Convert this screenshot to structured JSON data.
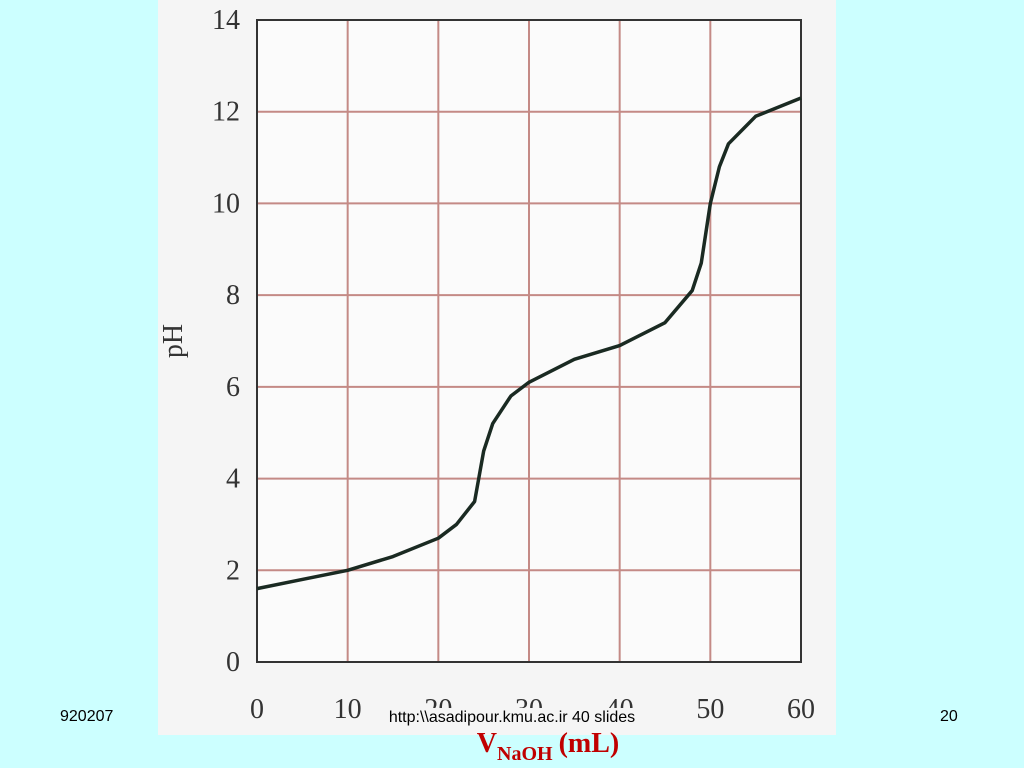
{
  "chart_data": {
    "type": "line",
    "ylabel": "pH",
    "xlabel": "V",
    "xlabel_sub": "NaOH",
    "xlabel_unit": "(mL)",
    "x": [
      0,
      5,
      10,
      15,
      20,
      22,
      24,
      25,
      26,
      28,
      30,
      35,
      40,
      45,
      48,
      49,
      50,
      51,
      52,
      55,
      60
    ],
    "series": [
      {
        "color": "#1a2a22",
        "values": [
          1.6,
          1.8,
          2.0,
          2.3,
          2.7,
          3.0,
          3.5,
          4.6,
          5.2,
          5.8,
          6.1,
          6.6,
          6.9,
          7.4,
          8.1,
          8.7,
          10.0,
          10.8,
          11.3,
          11.9,
          12.3
        ]
      }
    ],
    "xlim": [
      0,
      60
    ],
    "xticks": [
      0,
      10,
      20,
      30,
      40,
      50,
      60
    ],
    "ylim": [
      0,
      14
    ],
    "yticks": [
      0,
      2,
      4,
      6,
      8,
      10,
      12,
      14
    ],
    "grid": true,
    "grid_color": "#c48a86"
  },
  "footer": {
    "left": "920207",
    "center": "http:\\\\asadipour.kmu.ac.ir  40 slides",
    "right": "20"
  }
}
